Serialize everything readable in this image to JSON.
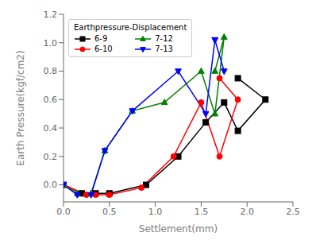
{
  "chart_data": {
    "type": "line",
    "title": "Earthpressure-Displacement",
    "x_label": "Settlement(mm)",
    "y_label": "Earth Pressure(kgf/cm2)",
    "xlim": [
      0,
      2.5
    ],
    "ylim": [
      -0.12,
      1.2
    ],
    "xticks": [
      {
        "value": 0,
        "label": "0.0"
      },
      {
        "value": 0.5,
        "label": "0.5"
      },
      {
        "value": 1,
        "label": "1.0"
      },
      {
        "value": 1.5,
        "label": "1.5"
      },
      {
        "value": 2,
        "label": "2.0"
      },
      {
        "value": 2.5,
        "label": "2.5"
      }
    ],
    "yticks": [
      {
        "value": 0,
        "label": "0.0"
      },
      {
        "value": 0.2,
        "label": "0.2"
      },
      {
        "value": 0.4,
        "label": "0.4"
      },
      {
        "value": 0.6,
        "label": "0.6"
      },
      {
        "value": 0.8,
        "label": "0.8"
      },
      {
        "value": 1,
        "label": "1.0"
      },
      {
        "value": 1.2,
        "label": "1.2"
      }
    ],
    "grid": false,
    "legend": "upper left",
    "series": [
      {
        "name": "6-9",
        "color": "black",
        "marker": "square",
        "line_style": "solid",
        "x": [
          0.0,
          0.2,
          0.35,
          0.5,
          0.9,
          1.25,
          1.55,
          1.75,
          1.9,
          2.2,
          1.9
        ],
        "values": [
          0.0,
          -0.06,
          -0.06,
          -0.06,
          0.0,
          0.2,
          0.44,
          0.58,
          0.38,
          0.6,
          0.75
        ]
      },
      {
        "name": "6-10",
        "color": "red",
        "marker": "circle",
        "line_style": "solid",
        "x": [
          0.0,
          0.25,
          0.35,
          0.5,
          0.85,
          1.2,
          1.5,
          1.7,
          1.9,
          1.7
        ],
        "values": [
          0.0,
          -0.07,
          -0.07,
          -0.07,
          -0.02,
          0.2,
          0.58,
          0.2,
          0.6,
          0.75
        ]
      },
      {
        "name": "7-12",
        "color": "green",
        "marker": "triangle-up",
        "line_style": "solid",
        "x": [
          0.0,
          0.15,
          0.3,
          0.45,
          0.75,
          1.1,
          1.5,
          1.65,
          1.75,
          1.65
        ],
        "values": [
          0.0,
          -0.06,
          -0.06,
          0.24,
          0.52,
          0.58,
          0.8,
          0.5,
          1.04,
          0.8
        ]
      },
      {
        "name": "7-13",
        "color": "blue",
        "marker": "triangle-down",
        "line_style": "solid",
        "x": [
          0.0,
          0.15,
          0.3,
          0.45,
          0.75,
          1.25,
          1.55,
          1.65,
          1.75,
          1.65
        ],
        "values": [
          0.0,
          -0.07,
          -0.07,
          0.24,
          0.52,
          0.8,
          0.5,
          1.02,
          0.8,
          1.02
        ]
      }
    ]
  }
}
